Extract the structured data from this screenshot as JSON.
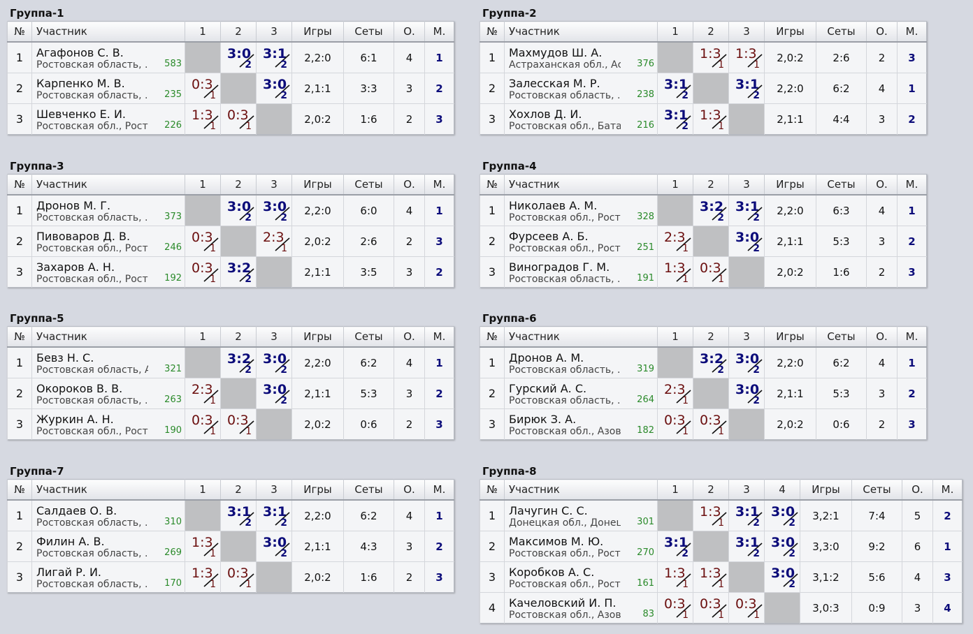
{
  "headers": {
    "num": "№",
    "name": "Участник",
    "games": "Игры",
    "sets": "Сеты",
    "points": "О.",
    "place": "М."
  },
  "groups": [
    {
      "title": "Группа-1",
      "cols": [
        "1",
        "2",
        "3"
      ],
      "rows": [
        {
          "n": "1",
          "name": "Агафонов С. В.",
          "region": "Ростовская область, ...",
          "rating": "583",
          "res": [
            null,
            {
              "s": "3:0",
              "p": "2",
              "w": true
            },
            {
              "s": "3:1",
              "p": "2",
              "w": true
            }
          ],
          "games": "2,2:0",
          "sets": "6:1",
          "pts": "4",
          "place": "1"
        },
        {
          "n": "2",
          "name": "Карпенко М. В.",
          "region": "Ростовская область, ...",
          "rating": "235",
          "res": [
            {
              "s": "0:3",
              "p": "1",
              "w": false
            },
            null,
            {
              "s": "3:0",
              "p": "2",
              "w": true
            }
          ],
          "games": "2,1:1",
          "sets": "3:3",
          "pts": "3",
          "place": "2"
        },
        {
          "n": "3",
          "name": "Шевченко Е. И.",
          "region": "Ростовская обл., Рост...",
          "rating": "226",
          "res": [
            {
              "s": "1:3",
              "p": "1",
              "w": false
            },
            {
              "s": "0:3",
              "p": "1",
              "w": false
            },
            null
          ],
          "games": "2,0:2",
          "sets": "1:6",
          "pts": "2",
          "place": "3"
        }
      ]
    },
    {
      "title": "Группа-2",
      "cols": [
        "1",
        "2",
        "3"
      ],
      "rows": [
        {
          "n": "1",
          "name": "Махмудов Ш. А.",
          "region": "Астраханская обл., Ас...",
          "rating": "376",
          "res": [
            null,
            {
              "s": "1:3",
              "p": "1",
              "w": false
            },
            {
              "s": "1:3",
              "p": "1",
              "w": false
            }
          ],
          "games": "2,0:2",
          "sets": "2:6",
          "pts": "2",
          "place": "3"
        },
        {
          "n": "2",
          "name": "Залесская М. Р.",
          "region": "Ростовская область, ...",
          "rating": "238",
          "res": [
            {
              "s": "3:1",
              "p": "2",
              "w": true
            },
            null,
            {
              "s": "3:1",
              "p": "2",
              "w": true
            }
          ],
          "games": "2,2:0",
          "sets": "6:2",
          "pts": "4",
          "place": "1"
        },
        {
          "n": "3",
          "name": "Хохлов Д. И.",
          "region": "Ростовская обл., Бата...",
          "rating": "216",
          "res": [
            {
              "s": "3:1",
              "p": "2",
              "w": true
            },
            {
              "s": "1:3",
              "p": "1",
              "w": false
            },
            null
          ],
          "games": "2,1:1",
          "sets": "4:4",
          "pts": "3",
          "place": "2"
        }
      ]
    },
    {
      "title": "Группа-3",
      "cols": [
        "1",
        "2",
        "3"
      ],
      "rows": [
        {
          "n": "1",
          "name": "Дронов М. Г.",
          "region": "Ростовская область, ...",
          "rating": "373",
          "res": [
            null,
            {
              "s": "3:0",
              "p": "2",
              "w": true
            },
            {
              "s": "3:0",
              "p": "2",
              "w": true
            }
          ],
          "games": "2,2:0",
          "sets": "6:0",
          "pts": "4",
          "place": "1"
        },
        {
          "n": "2",
          "name": "Пивоваров Д. В.",
          "region": "Ростовская обл., Рост...",
          "rating": "246",
          "res": [
            {
              "s": "0:3",
              "p": "1",
              "w": false
            },
            null,
            {
              "s": "2:3",
              "p": "1",
              "w": false
            }
          ],
          "games": "2,0:2",
          "sets": "2:6",
          "pts": "2",
          "place": "3"
        },
        {
          "n": "3",
          "name": "Захаров А. Н.",
          "region": "Ростовская обл., Рост...",
          "rating": "192",
          "res": [
            {
              "s": "0:3",
              "p": "1",
              "w": false
            },
            {
              "s": "3:2",
              "p": "2",
              "w": true
            },
            null
          ],
          "games": "2,1:1",
          "sets": "3:5",
          "pts": "3",
          "place": "2"
        }
      ]
    },
    {
      "title": "Группа-4",
      "cols": [
        "1",
        "2",
        "3"
      ],
      "rows": [
        {
          "n": "1",
          "name": "Николаев А. М.",
          "region": "Ростовская обл., Рост...",
          "rating": "328",
          "res": [
            null,
            {
              "s": "3:2",
              "p": "2",
              "w": true
            },
            {
              "s": "3:1",
              "p": "2",
              "w": true
            }
          ],
          "games": "2,2:0",
          "sets": "6:3",
          "pts": "4",
          "place": "1"
        },
        {
          "n": "2",
          "name": "Фурсеев А. Б.",
          "region": "Ростовская обл., Рост...",
          "rating": "251",
          "res": [
            {
              "s": "2:3",
              "p": "1",
              "w": false
            },
            null,
            {
              "s": "3:0",
              "p": "2",
              "w": true
            }
          ],
          "games": "2,1:1",
          "sets": "5:3",
          "pts": "3",
          "place": "2"
        },
        {
          "n": "3",
          "name": "Виноградов Г. М.",
          "region": "Ростовская область, ...",
          "rating": "191",
          "res": [
            {
              "s": "1:3",
              "p": "1",
              "w": false
            },
            {
              "s": "0:3",
              "p": "1",
              "w": false
            },
            null
          ],
          "games": "2,0:2",
          "sets": "1:6",
          "pts": "2",
          "place": "3"
        }
      ]
    },
    {
      "title": "Группа-5",
      "cols": [
        "1",
        "2",
        "3"
      ],
      "rows": [
        {
          "n": "1",
          "name": "Бевз Н. С.",
          "region": "Ростовская область, А...",
          "rating": "321",
          "res": [
            null,
            {
              "s": "3:2",
              "p": "2",
              "w": true
            },
            {
              "s": "3:0",
              "p": "2",
              "w": true
            }
          ],
          "games": "2,2:0",
          "sets": "6:2",
          "pts": "4",
          "place": "1"
        },
        {
          "n": "2",
          "name": "Окороков В. В.",
          "region": "Ростовская область, ...",
          "rating": "263",
          "res": [
            {
              "s": "2:3",
              "p": "1",
              "w": false
            },
            null,
            {
              "s": "3:0",
              "p": "2",
              "w": true
            }
          ],
          "games": "2,1:1",
          "sets": "5:3",
          "pts": "3",
          "place": "2"
        },
        {
          "n": "3",
          "name": "Журкин А. Н.",
          "region": "Ростовская обл., Рост...",
          "rating": "190",
          "res": [
            {
              "s": "0:3",
              "p": "1",
              "w": false
            },
            {
              "s": "0:3",
              "p": "1",
              "w": false
            },
            null
          ],
          "games": "2,0:2",
          "sets": "0:6",
          "pts": "2",
          "place": "3"
        }
      ]
    },
    {
      "title": "Группа-6",
      "cols": [
        "1",
        "2",
        "3"
      ],
      "rows": [
        {
          "n": "1",
          "name": "Дронов А. М.",
          "region": "Ростовская область, ...",
          "rating": "319",
          "res": [
            null,
            {
              "s": "3:2",
              "p": "2",
              "w": true
            },
            {
              "s": "3:0",
              "p": "2",
              "w": true
            }
          ],
          "games": "2,2:0",
          "sets": "6:2",
          "pts": "4",
          "place": "1"
        },
        {
          "n": "2",
          "name": "Гурский А. С.",
          "region": "Ростовская область, ...",
          "rating": "264",
          "res": [
            {
              "s": "2:3",
              "p": "1",
              "w": false
            },
            null,
            {
              "s": "3:0",
              "p": "2",
              "w": true
            }
          ],
          "games": "2,1:1",
          "sets": "5:3",
          "pts": "3",
          "place": "2"
        },
        {
          "n": "3",
          "name": "Бирюк З. А.",
          "region": "Ростовская обл., Азов",
          "rating": "182",
          "res": [
            {
              "s": "0:3",
              "p": "1",
              "w": false
            },
            {
              "s": "0:3",
              "p": "1",
              "w": false
            },
            null
          ],
          "games": "2,0:2",
          "sets": "0:6",
          "pts": "2",
          "place": "3"
        }
      ]
    },
    {
      "title": "Группа-7",
      "cols": [
        "1",
        "2",
        "3"
      ],
      "rows": [
        {
          "n": "1",
          "name": "Салдаев О. В.",
          "region": "Ростовская область, ...",
          "rating": "310",
          "res": [
            null,
            {
              "s": "3:1",
              "p": "2",
              "w": true
            },
            {
              "s": "3:1",
              "p": "2",
              "w": true
            }
          ],
          "games": "2,2:0",
          "sets": "6:2",
          "pts": "4",
          "place": "1"
        },
        {
          "n": "2",
          "name": "Филин А. В.",
          "region": "Ростовская область, ...",
          "rating": "269",
          "res": [
            {
              "s": "1:3",
              "p": "1",
              "w": false
            },
            null,
            {
              "s": "3:0",
              "p": "2",
              "w": true
            }
          ],
          "games": "2,1:1",
          "sets": "4:3",
          "pts": "3",
          "place": "2"
        },
        {
          "n": "3",
          "name": "Лигай Р. И.",
          "region": "Ростовская область, ...",
          "rating": "170",
          "res": [
            {
              "s": "1:3",
              "p": "1",
              "w": false
            },
            {
              "s": "0:3",
              "p": "1",
              "w": false
            },
            null
          ],
          "games": "2,0:2",
          "sets": "1:6",
          "pts": "2",
          "place": "3"
        }
      ]
    },
    {
      "title": "Группа-8",
      "cols": [
        "1",
        "2",
        "3",
        "4"
      ],
      "rows": [
        {
          "n": "1",
          "name": "Лачугин С. С.",
          "region": "Донецкая обл., Донецк",
          "rating": "301",
          "res": [
            null,
            {
              "s": "1:3",
              "p": "1",
              "w": false
            },
            {
              "s": "3:1",
              "p": "2",
              "w": true
            },
            {
              "s": "3:0",
              "p": "2",
              "w": true
            }
          ],
          "games": "3,2:1",
          "sets": "7:4",
          "pts": "5",
          "place": "2"
        },
        {
          "n": "2",
          "name": "Максимов М. Ю.",
          "region": "Ростовская обл., Рост...",
          "rating": "270",
          "res": [
            {
              "s": "3:1",
              "p": "2",
              "w": true
            },
            null,
            {
              "s": "3:1",
              "p": "2",
              "w": true
            },
            {
              "s": "3:0",
              "p": "2",
              "w": true
            }
          ],
          "games": "3,3:0",
          "sets": "9:2",
          "pts": "6",
          "place": "1"
        },
        {
          "n": "3",
          "name": "Коробков А. С.",
          "region": "Ростовская обл., Рост...",
          "rating": "161",
          "res": [
            {
              "s": "1:3",
              "p": "1",
              "w": false
            },
            {
              "s": "1:3",
              "p": "1",
              "w": false
            },
            null,
            {
              "s": "3:0",
              "p": "2",
              "w": true
            }
          ],
          "games": "3,1:2",
          "sets": "5:6",
          "pts": "4",
          "place": "3"
        },
        {
          "n": "4",
          "name": "Качеловский И. П.",
          "region": "Ростовская обл., Азов",
          "rating": "83",
          "res": [
            {
              "s": "0:3",
              "p": "1",
              "w": false
            },
            {
              "s": "0:3",
              "p": "1",
              "w": false
            },
            {
              "s": "0:3",
              "p": "1",
              "w": false
            },
            null
          ],
          "games": "3,0:3",
          "sets": "0:9",
          "pts": "3",
          "place": "4"
        }
      ]
    }
  ]
}
